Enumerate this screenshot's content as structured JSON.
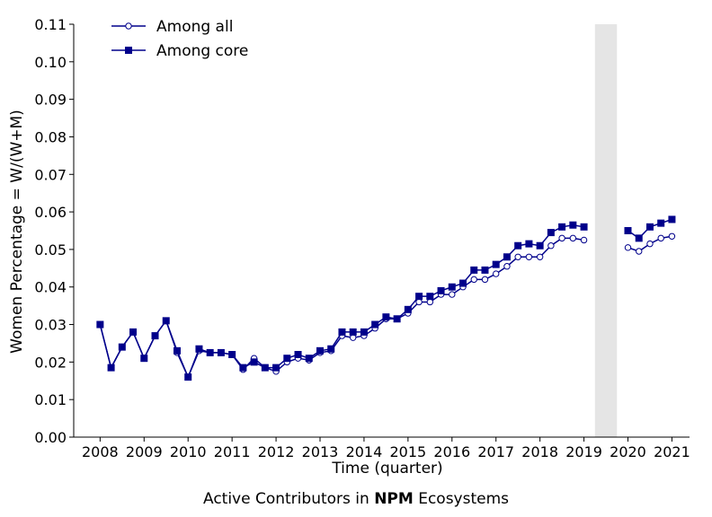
{
  "caption": {
    "prefix": "Active Contributors in",
    "bold": "NPM",
    "suffix": "Ecosystems"
  },
  "chart_data": {
    "type": "line",
    "xlabel": "Time (quarter)",
    "ylabel": "Women Percentage = W/(W+M)",
    "xlim": [
      2007.4,
      2021.4
    ],
    "ylim": [
      0.0,
      0.11
    ],
    "x_ticks": [
      2008,
      2009,
      2010,
      2011,
      2012,
      2013,
      2014,
      2015,
      2016,
      2017,
      2018,
      2019,
      2020,
      2021
    ],
    "y_ticks": [
      "0.00",
      "0.01",
      "0.02",
      "0.03",
      "0.04",
      "0.05",
      "0.06",
      "0.07",
      "0.08",
      "0.09",
      "0.10",
      "0.11"
    ],
    "shaded_region": [
      2019.25,
      2019.75
    ],
    "legend_position": "top-left",
    "grid": false,
    "colors": {
      "line": "#00008b",
      "shade": "#e5e5e5"
    },
    "series": [
      {
        "name": "Among all",
        "marker": "open-circle",
        "segments": [
          {
            "x": [
              2008,
              2008.25,
              2008.5,
              2008.75,
              2009,
              2009.25,
              2009.5,
              2009.75,
              2010,
              2010.25,
              2010.5,
              2010.75,
              2011,
              2011.25,
              2011.5,
              2011.75,
              2012,
              2012.25,
              2012.5,
              2012.75,
              2013,
              2013.25,
              2013.5,
              2013.75,
              2014,
              2014.25,
              2014.5,
              2014.75,
              2015,
              2015.25,
              2015.5,
              2015.75,
              2016,
              2016.25,
              2016.5,
              2016.75,
              2017,
              2017.25,
              2017.5,
              2017.75,
              2018,
              2018.25,
              2018.5,
              2018.75,
              2019
            ],
            "y": [
              0.03,
              0.0185,
              0.024,
              0.028,
              0.021,
              0.027,
              0.031,
              0.0225,
              0.016,
              0.023,
              0.0225,
              0.0225,
              0.022,
              0.018,
              0.021,
              0.0185,
              0.0175,
              0.02,
              0.021,
              0.0205,
              0.0225,
              0.023,
              0.027,
              0.0265,
              0.027,
              0.029,
              0.0315,
              0.0315,
              0.033,
              0.036,
              0.036,
              0.038,
              0.038,
              0.04,
              0.042,
              0.042,
              0.0435,
              0.0455,
              0.048,
              0.048,
              0.048,
              0.051,
              0.053,
              0.053,
              0.0525
            ]
          },
          {
            "x": [
              2020,
              2020.25,
              2020.5,
              2020.75,
              2021
            ],
            "y": [
              0.0505,
              0.0495,
              0.0515,
              0.053,
              0.0535
            ]
          }
        ]
      },
      {
        "name": "Among core",
        "marker": "filled-square",
        "segments": [
          {
            "x": [
              2008,
              2008.25,
              2008.5,
              2008.75,
              2009,
              2009.25,
              2009.5,
              2009.75,
              2010,
              2010.25,
              2010.5,
              2010.75,
              2011,
              2011.25,
              2011.5,
              2011.75,
              2012,
              2012.25,
              2012.5,
              2012.75,
              2013,
              2013.25,
              2013.5,
              2013.75,
              2014,
              2014.25,
              2014.5,
              2014.75,
              2015,
              2015.25,
              2015.5,
              2015.75,
              2016,
              2016.25,
              2016.5,
              2016.75,
              2017,
              2017.25,
              2017.5,
              2017.75,
              2018,
              2018.25,
              2018.5,
              2018.75,
              2019
            ],
            "y": [
              0.03,
              0.0185,
              0.024,
              0.028,
              0.021,
              0.027,
              0.031,
              0.023,
              0.016,
              0.0235,
              0.0225,
              0.0225,
              0.022,
              0.0185,
              0.02,
              0.0185,
              0.0185,
              0.021,
              0.022,
              0.021,
              0.023,
              0.0235,
              0.028,
              0.028,
              0.028,
              0.03,
              0.032,
              0.0315,
              0.034,
              0.0375,
              0.0375,
              0.039,
              0.04,
              0.041,
              0.0445,
              0.0445,
              0.046,
              0.048,
              0.051,
              0.0515,
              0.051,
              0.0545,
              0.056,
              0.0565,
              0.056
            ]
          },
          {
            "x": [
              2020,
              2020.25,
              2020.5,
              2020.75,
              2021
            ],
            "y": [
              0.055,
              0.053,
              0.056,
              0.057,
              0.058
            ]
          }
        ]
      }
    ]
  }
}
